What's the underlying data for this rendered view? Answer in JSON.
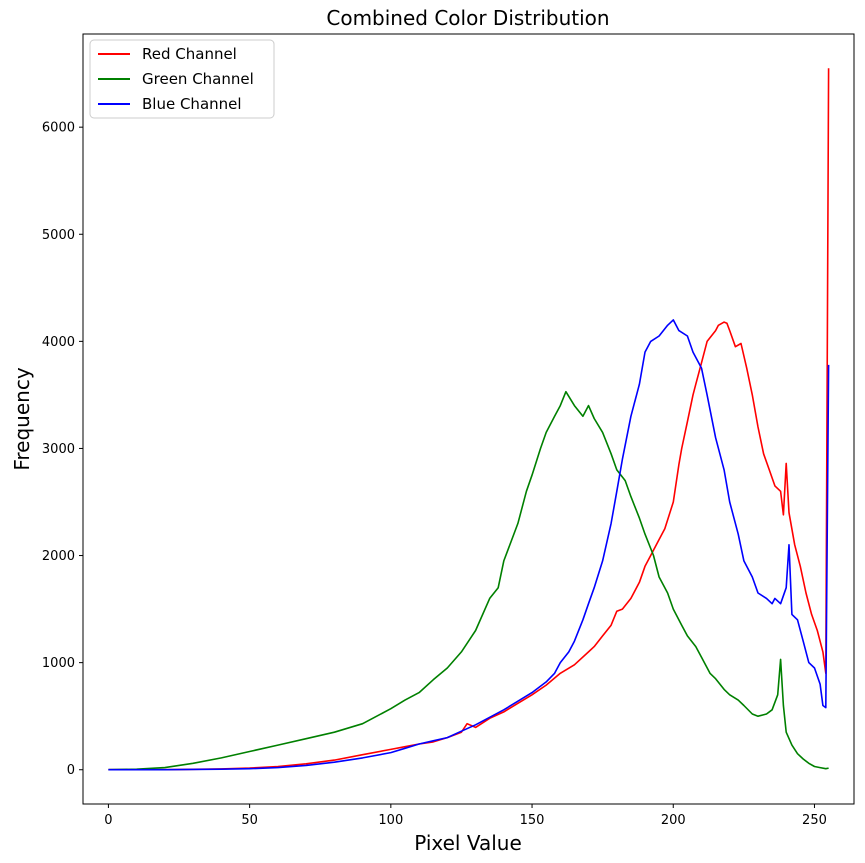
{
  "chart_data": {
    "type": "line",
    "title": "Combined Color Distribution",
    "xlabel": "Pixel Value",
    "ylabel": "Frequency",
    "xlim": [
      -9,
      264
    ],
    "ylim": [
      -320,
      6870
    ],
    "xticks": [
      0,
      50,
      100,
      150,
      200,
      250
    ],
    "yticks": [
      0,
      1000,
      2000,
      3000,
      4000,
      5000,
      6000
    ],
    "grid": false,
    "legend_position": "top-left",
    "series": [
      {
        "name": "Red Channel",
        "color": "#ff0000",
        "x": [
          0,
          20,
          40,
          50,
          60,
          70,
          80,
          90,
          100,
          105,
          110,
          115,
          120,
          125,
          127,
          130,
          135,
          140,
          145,
          150,
          155,
          160,
          165,
          170,
          172,
          175,
          178,
          180,
          182,
          185,
          188,
          190,
          192,
          195,
          197,
          200,
          202,
          203,
          205,
          207,
          208,
          210,
          212,
          215,
          216,
          218,
          219,
          220,
          222,
          224,
          226,
          228,
          230,
          232,
          234,
          236,
          238,
          239,
          240,
          241,
          243,
          245,
          247,
          249,
          251,
          253,
          254,
          255
        ],
        "y": [
          0,
          0,
          8,
          15,
          30,
          55,
          90,
          140,
          190,
          215,
          240,
          260,
          300,
          350,
          430,
          395,
          480,
          540,
          620,
          700,
          790,
          900,
          980,
          1100,
          1150,
          1250,
          1350,
          1480,
          1500,
          1600,
          1750,
          1900,
          2000,
          2150,
          2250,
          2500,
          2850,
          3000,
          3250,
          3500,
          3600,
          3800,
          4000,
          4100,
          4150,
          4180,
          4170,
          4100,
          3950,
          3980,
          3750,
          3500,
          3200,
          2950,
          2800,
          2650,
          2600,
          2380,
          2860,
          2400,
          2100,
          1900,
          1650,
          1450,
          1300,
          1100,
          900,
          6550
        ]
      },
      {
        "name": "Green Channel",
        "color": "#008000",
        "x": [
          0,
          10,
          20,
          30,
          40,
          50,
          60,
          70,
          80,
          90,
          100,
          105,
          110,
          115,
          120,
          125,
          130,
          135,
          138,
          140,
          145,
          148,
          150,
          153,
          155,
          158,
          160,
          162,
          165,
          168,
          170,
          172,
          175,
          178,
          180,
          183,
          185,
          188,
          190,
          193,
          195,
          198,
          200,
          203,
          205,
          208,
          210,
          213,
          215,
          218,
          220,
          223,
          225,
          228,
          230,
          233,
          235,
          237,
          238,
          239,
          240,
          242,
          244,
          246,
          248,
          250,
          252,
          254,
          255
        ],
        "y": [
          0,
          5,
          20,
          60,
          110,
          170,
          230,
          290,
          350,
          430,
          570,
          650,
          720,
          840,
          950,
          1100,
          1300,
          1600,
          1700,
          1950,
          2300,
          2600,
          2750,
          3000,
          3150,
          3300,
          3400,
          3530,
          3400,
          3300,
          3400,
          3280,
          3150,
          2950,
          2800,
          2700,
          2550,
          2350,
          2200,
          2000,
          1800,
          1650,
          1500,
          1350,
          1250,
          1150,
          1050,
          900,
          850,
          750,
          700,
          650,
          600,
          520,
          500,
          520,
          560,
          700,
          1030,
          600,
          350,
          230,
          150,
          100,
          60,
          30,
          20,
          10,
          15
        ]
      },
      {
        "name": "Blue Channel",
        "color": "#0000ff",
        "x": [
          0,
          20,
          40,
          50,
          60,
          70,
          80,
          90,
          100,
          105,
          110,
          115,
          120,
          125,
          130,
          135,
          140,
          145,
          150,
          155,
          158,
          160,
          163,
          165,
          168,
          170,
          172,
          175,
          178,
          180,
          182,
          185,
          188,
          190,
          192,
          195,
          198,
          200,
          202,
          205,
          207,
          210,
          212,
          215,
          218,
          220,
          223,
          225,
          228,
          230,
          233,
          235,
          236,
          238,
          240,
          241,
          242,
          244,
          246,
          248,
          250,
          252,
          253,
          254,
          255
        ],
        "y": [
          0,
          0,
          5,
          10,
          20,
          40,
          70,
          110,
          160,
          200,
          240,
          270,
          300,
          360,
          420,
          490,
          560,
          640,
          720,
          820,
          900,
          1000,
          1100,
          1200,
          1400,
          1550,
          1700,
          1950,
          2300,
          2600,
          2900,
          3300,
          3600,
          3900,
          4000,
          4050,
          4150,
          4200,
          4100,
          4050,
          3900,
          3750,
          3500,
          3100,
          2800,
          2500,
          2200,
          1950,
          1800,
          1650,
          1600,
          1550,
          1600,
          1550,
          1700,
          2100,
          1450,
          1400,
          1200,
          1000,
          950,
          800,
          600,
          580,
          3780
        ]
      }
    ]
  }
}
